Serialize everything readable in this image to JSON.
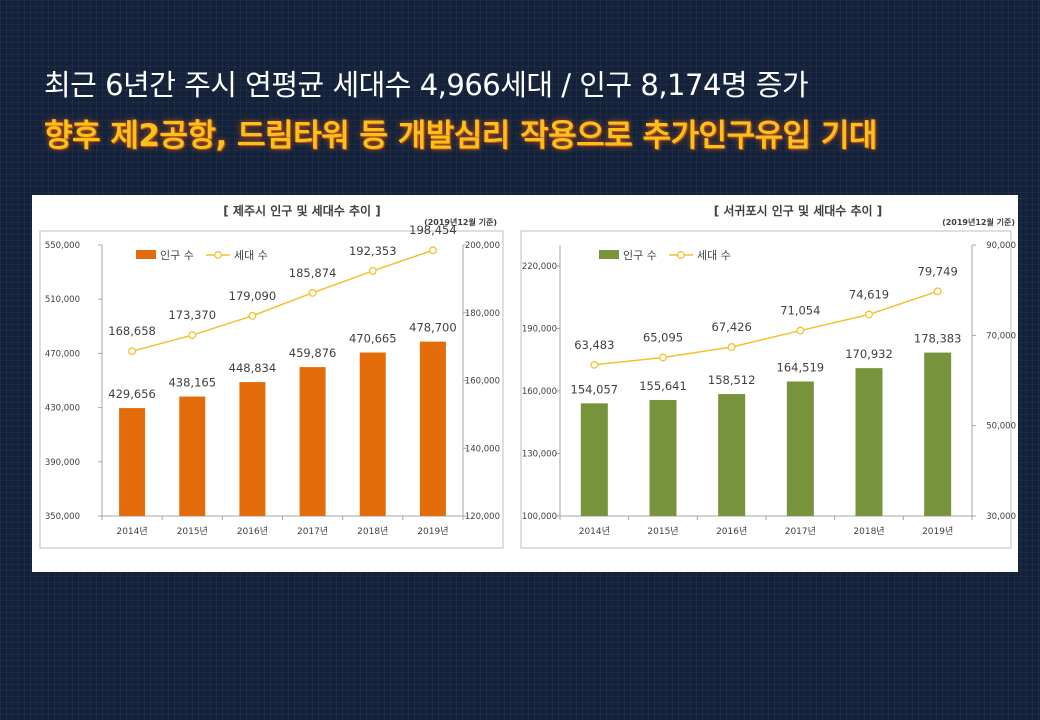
{
  "header": {
    "line1": "최근 6년간 주시 연평균 세대수 4,966세대 / 인구 8,174명 증가",
    "line2": "향후 제2공항, 드림타워 등 개발심리 작용으로 추가인구유입 기대"
  },
  "colors": {
    "jeju_bar": "#e36c0a",
    "seogwipo_bar": "#77933c",
    "household_line": "#f2c12e"
  },
  "chart_data": [
    {
      "type": "bar",
      "title": "[ 제주시 인구 및 세대수 추이 ]",
      "note": "(2019년12월 기준)",
      "categories": [
        "2014년",
        "2015년",
        "2016년",
        "2017년",
        "2018년",
        "2019년"
      ],
      "series": [
        {
          "name": "인구 수",
          "type": "bar",
          "axis": "left",
          "values": [
            429656,
            438165,
            448834,
            459876,
            470665,
            478700
          ],
          "labels": [
            "429,656",
            "438,165",
            "448,834",
            "459,876",
            "470,665",
            "478,700"
          ]
        },
        {
          "name": "세대 수",
          "type": "line",
          "axis": "right",
          "values": [
            168658,
            173370,
            179090,
            185874,
            192353,
            198454
          ],
          "labels": [
            "168,658",
            "173,370",
            "179,090",
            "185,874",
            "192,353",
            "198,454"
          ]
        }
      ],
      "ylim_left": [
        350000,
        550000
      ],
      "yticks_left": [
        350000,
        390000,
        430000,
        470000,
        510000,
        550000
      ],
      "ytick_labels_left": [
        "350,000",
        "390,000",
        "430,000",
        "470,000",
        "510,000",
        "550,000"
      ],
      "ylim_right": [
        120000,
        200000
      ],
      "yticks_right": [
        120000,
        140000,
        160000,
        180000,
        200000
      ],
      "ytick_labels_right": [
        "120,000",
        "140,000",
        "160,000",
        "180,000",
        "200,000"
      ],
      "legend": "top-left",
      "grid": false
    },
    {
      "type": "bar",
      "title": "[ 서귀포시 인구 및 세대수 추이 ]",
      "note": "(2019년12월 기준)",
      "categories": [
        "2014년",
        "2015년",
        "2016년",
        "2017년",
        "2018년",
        "2019년"
      ],
      "series": [
        {
          "name": "인구 수",
          "type": "bar",
          "axis": "left",
          "values": [
            154057,
            155641,
            158512,
            164519,
            170932,
            178383
          ],
          "labels": [
            "154,057",
            "155,641",
            "158,512",
            "164,519",
            "170,932",
            "178,383"
          ]
        },
        {
          "name": "세대 수",
          "type": "line",
          "axis": "right",
          "values": [
            63483,
            65095,
            67426,
            71054,
            74619,
            79749
          ],
          "labels": [
            "63,483",
            "65,095",
            "67,426",
            "71,054",
            "74,619",
            "79,749"
          ]
        }
      ],
      "ylim_left": [
        100000,
        230000
      ],
      "yticks_left": [
        100000,
        130000,
        160000,
        190000,
        220000
      ],
      "ytick_labels_left": [
        "100,000",
        "130,000",
        "160,000",
        "190,000",
        "220,000"
      ],
      "ylim_right": [
        30000,
        90000
      ],
      "yticks_right": [
        30000,
        50000,
        70000,
        90000
      ],
      "ytick_labels_right": [
        "30,000",
        "50,000",
        "70,000",
        "90,000"
      ],
      "legend": "top-left",
      "grid": false
    }
  ]
}
